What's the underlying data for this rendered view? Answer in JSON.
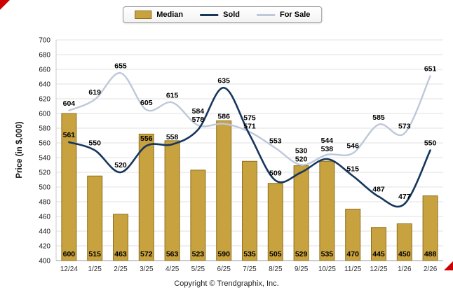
{
  "chart_data": {
    "type": "bar+line",
    "categories": [
      "12/24",
      "1/25",
      "2/25",
      "3/25",
      "4/25",
      "5/25",
      "6/25",
      "7/25",
      "8/25",
      "9/25",
      "10/25",
      "11/25",
      "12/25",
      "1/26",
      "2/26"
    ],
    "series": [
      {
        "name": "Median",
        "type": "bar",
        "color": "#C7A23E",
        "border_color": "#8E6F1E",
        "values": [
          600,
          515,
          463,
          572,
          563,
          523,
          590,
          535,
          505,
          529,
          535,
          470,
          445,
          450,
          488
        ]
      },
      {
        "name": "Sold",
        "type": "line",
        "color": "#17365D",
        "values": [
          561,
          550,
          520,
          556,
          558,
          578,
          635,
          571,
          509,
          520,
          538,
          515,
          487,
          477,
          550
        ]
      },
      {
        "name": "For Sale",
        "type": "line",
        "color": "#BDC8DA",
        "values": [
          604,
          619,
          655,
          605,
          615,
          584,
          586,
          575,
          553,
          530,
          544,
          546,
          585,
          573,
          651
        ]
      }
    ],
    "xlabel": "",
    "ylabel": "Price (in $,000)",
    "ylim": [
      400,
      700
    ],
    "ytick_step": 20,
    "grid": true,
    "legend_position": "top-center"
  },
  "colors": {
    "grid": "#E0E0E0",
    "axis": "#9A9A9A",
    "tick_text": "#111111",
    "x_label_text": "#333333",
    "data_label_text": "#000000",
    "red_marker": "#CC0000"
  },
  "footer": {
    "copyright": "Copyright © Trendgraphix, Inc."
  }
}
